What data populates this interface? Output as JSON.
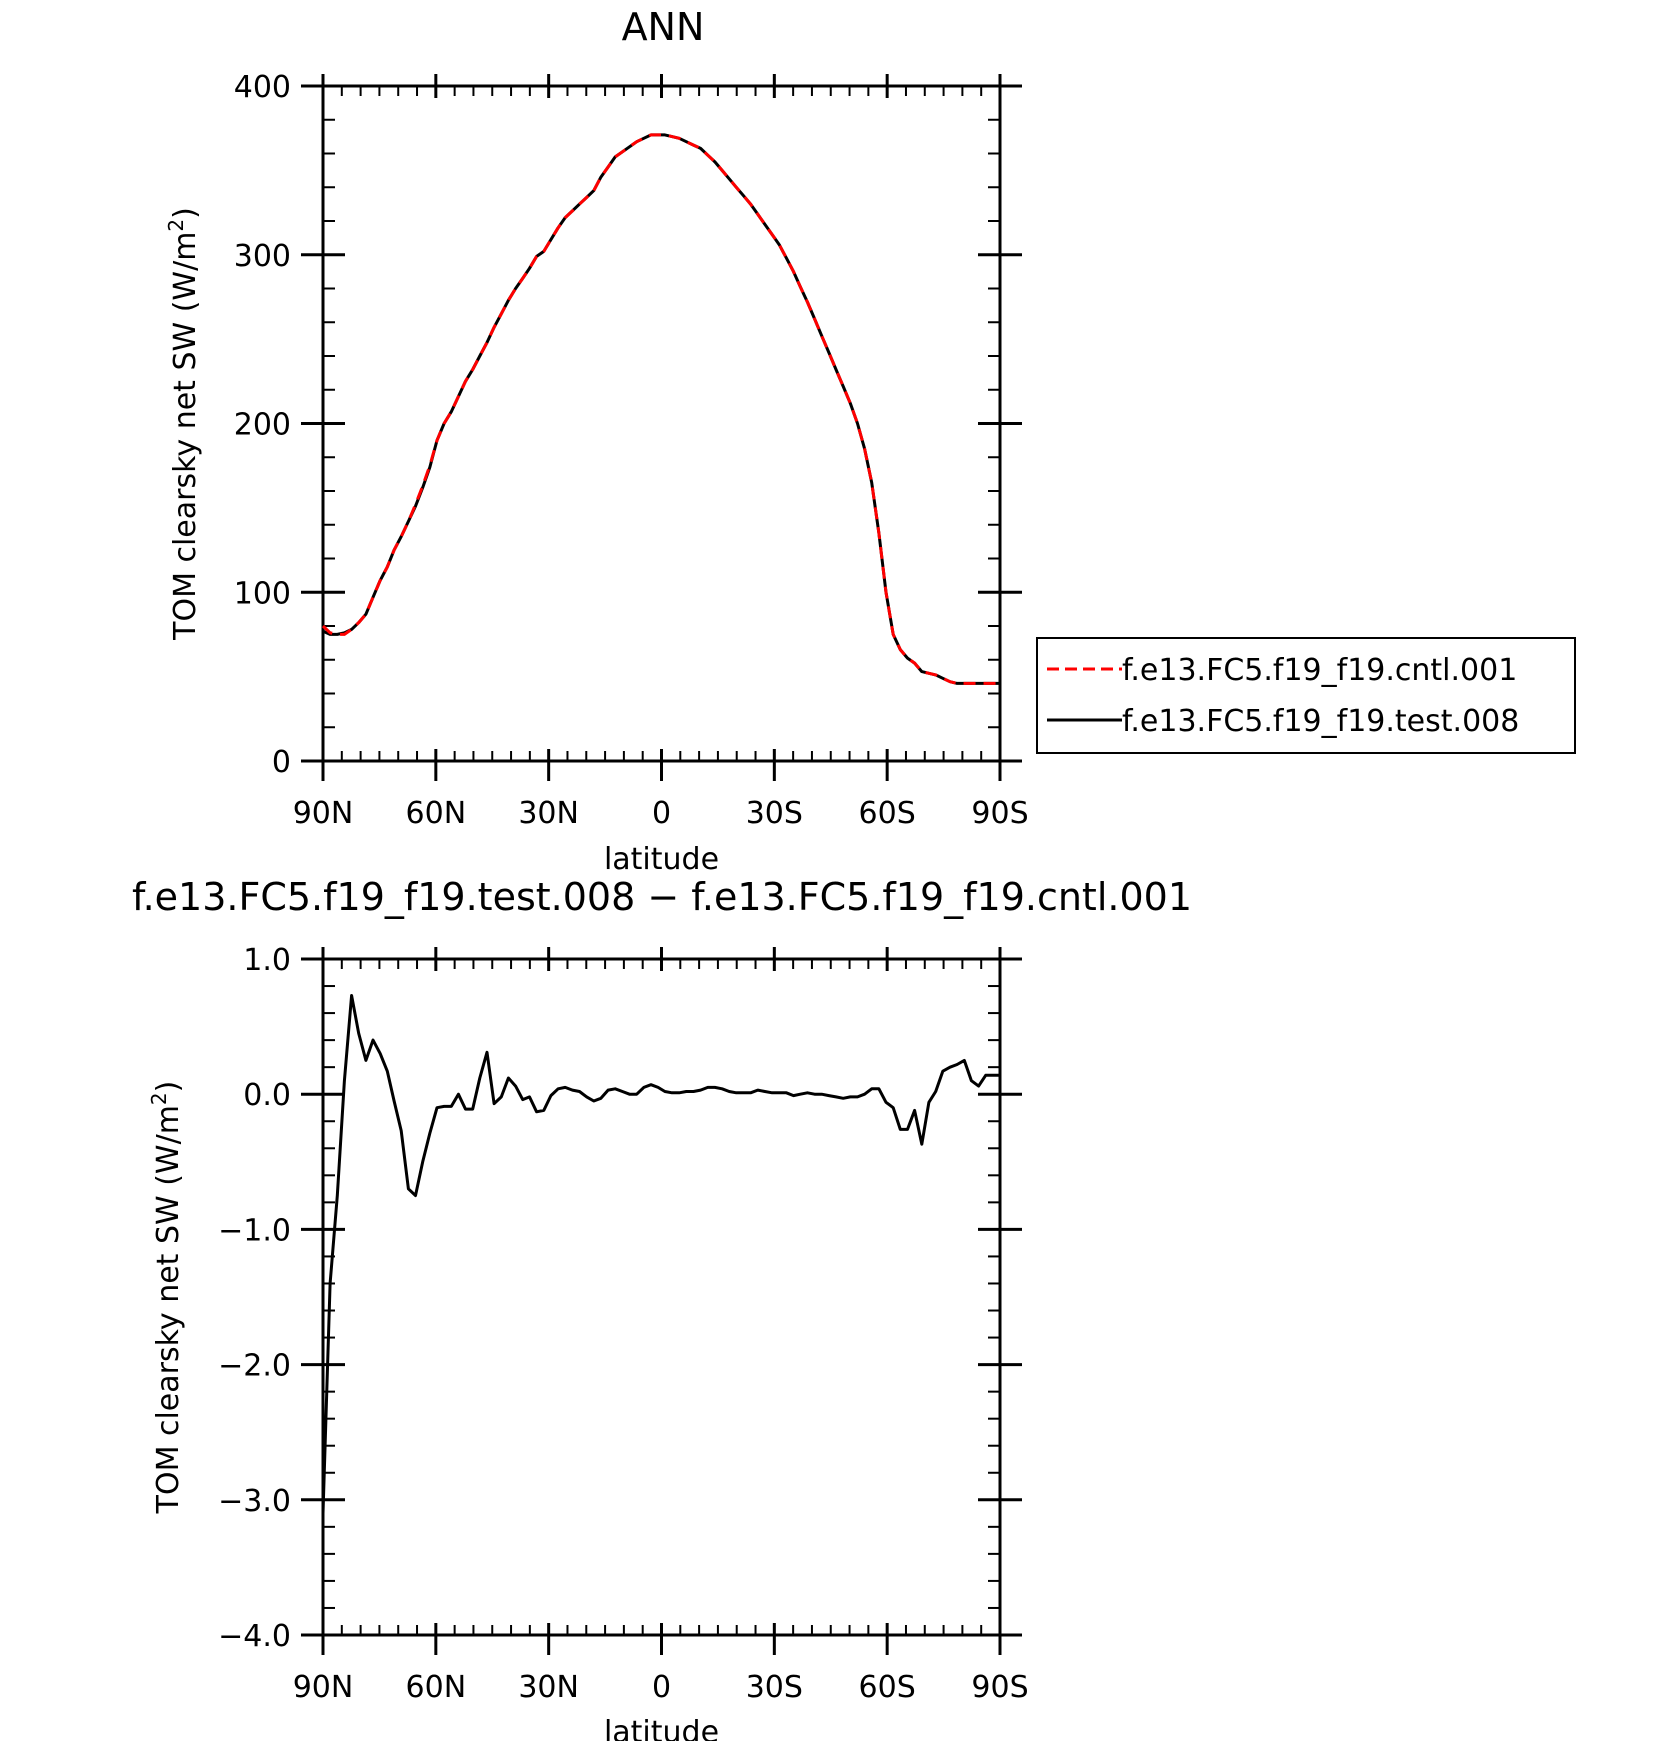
{
  "chart_data": [
    {
      "type": "line",
      "title": "ANN",
      "xlabel": "latitude",
      "ylabel_main": "TOM clearsky net SW (W/m",
      "ylabel_sup": "2",
      "ylabel_close": ")",
      "xlim": [
        90,
        -90
      ],
      "ylim": [
        0,
        400
      ],
      "xticks": [
        {
          "value": 90,
          "label": "90N"
        },
        {
          "value": 60,
          "label": "60N"
        },
        {
          "value": 30,
          "label": "30N"
        },
        {
          "value": 0,
          "label": "0"
        },
        {
          "value": -30,
          "label": "30S"
        },
        {
          "value": -60,
          "label": "60S"
        },
        {
          "value": -90,
          "label": "90S"
        }
      ],
      "yticks": [
        {
          "value": 0,
          "label": "0"
        },
        {
          "value": 100,
          "label": "100"
        },
        {
          "value": 200,
          "label": "200"
        },
        {
          "value": 300,
          "label": "300"
        },
        {
          "value": 400,
          "label": "400"
        }
      ],
      "legend": {
        "placement": "right",
        "entries": [
          "f.e13.FC5.f19_f19.cntl.001",
          "f.e13.FC5.f19_f19.test.008"
        ]
      },
      "series": [
        {
          "name": "f.e13.FC5.f19_f19.cntl.001",
          "color": "#ff0000",
          "style": "dashed",
          "x": [
            90,
            88.1,
            86.2,
            84.3,
            82.4,
            80.5,
            78.6,
            76.7,
            74.8,
            72.9,
            71.1,
            69.2,
            67.3,
            65.4,
            63.5,
            61.6,
            59.7,
            57.8,
            55.9,
            54.0,
            52.1,
            50.2,
            48.3,
            46.4,
            44.5,
            42.6,
            40.7,
            38.8,
            36.9,
            35.1,
            33.2,
            31.3,
            29.4,
            27.5,
            25.6,
            23.7,
            21.8,
            19.9,
            18.0,
            16.1,
            14.2,
            12.3,
            10.4,
            8.5,
            6.6,
            4.7,
            2.8,
            0.9,
            -0.9,
            -2.8,
            -4.7,
            -6.6,
            -8.5,
            -10.4,
            -12.3,
            -14.2,
            -16.1,
            -18.0,
            -19.9,
            -21.8,
            -23.7,
            -25.6,
            -27.5,
            -29.4,
            -31.3,
            -33.2,
            -35.1,
            -36.9,
            -38.8,
            -40.7,
            -42.6,
            -44.5,
            -46.4,
            -48.3,
            -50.2,
            -52.1,
            -54.0,
            -55.9,
            -57.8,
            -59.7,
            -61.6,
            -63.5,
            -65.4,
            -67.3,
            -69.2,
            -71.1,
            -72.9,
            -74.8,
            -76.7,
            -78.6,
            -80.5,
            -82.4,
            -84.3,
            -86.2,
            -88.1,
            -90
          ],
          "y": [
            80,
            76,
            75,
            75,
            78,
            82,
            87,
            97,
            107,
            115,
            125,
            133,
            142,
            152,
            163,
            175,
            190,
            200,
            207,
            216,
            225,
            232,
            240,
            248,
            257,
            265,
            273,
            280,
            286,
            292,
            299,
            302,
            309,
            316,
            322,
            326,
            330,
            334,
            338,
            346,
            352,
            358,
            361,
            364,
            367,
            369,
            371,
            371,
            371,
            370,
            369,
            367,
            365,
            363,
            359,
            355,
            350,
            345,
            340,
            335,
            330,
            324,
            318,
            312,
            306,
            298,
            290,
            281,
            272,
            262,
            252,
            242,
            232,
            222,
            212,
            200,
            185,
            165,
            135,
            100,
            75,
            66,
            61,
            58,
            53,
            52,
            51,
            49,
            47,
            46,
            46,
            46,
            46,
            46,
            46,
            46
          ]
        },
        {
          "name": "f.e13.FC5.f19_f19.test.008",
          "color": "#000000",
          "style": "solid",
          "x": [
            90,
            88.1,
            86.2,
            84.3,
            82.4,
            80.5,
            78.6,
            76.7,
            74.8,
            72.9,
            71.1,
            69.2,
            67.3,
            65.4,
            63.5,
            61.6,
            59.7,
            57.8,
            55.9,
            54.0,
            52.1,
            50.2,
            48.3,
            46.4,
            44.5,
            42.6,
            40.7,
            38.8,
            36.9,
            35.1,
            33.2,
            31.3,
            29.4,
            27.5,
            25.6,
            23.7,
            21.8,
            19.9,
            18.0,
            16.1,
            14.2,
            12.3,
            10.4,
            8.5,
            6.6,
            4.7,
            2.8,
            0.9,
            -0.9,
            -2.8,
            -4.7,
            -6.6,
            -8.5,
            -10.4,
            -12.3,
            -14.2,
            -16.1,
            -18.0,
            -19.9,
            -21.8,
            -23.7,
            -25.6,
            -27.5,
            -29.4,
            -31.3,
            -33.2,
            -35.1,
            -36.9,
            -38.8,
            -40.7,
            -42.6,
            -44.5,
            -46.4,
            -48.3,
            -50.2,
            -52.1,
            -54.0,
            -55.9,
            -57.8,
            -59.7,
            -61.6,
            -63.5,
            -65.4,
            -67.3,
            -69.2,
            -71.1,
            -72.9,
            -74.8,
            -76.7,
            -78.6,
            -80.5,
            -82.4,
            -84.3,
            -86.2,
            -88.1,
            -90
          ],
          "y": [
            77,
            75,
            75,
            76,
            78,
            82,
            87,
            97,
            107,
            115,
            125,
            133,
            142,
            151,
            162,
            174,
            190,
            200,
            207,
            216,
            225,
            232,
            240,
            248,
            257,
            265,
            273,
            280,
            286,
            292,
            299,
            302,
            309,
            316,
            322,
            326,
            330,
            334,
            338,
            346,
            352,
            358,
            361,
            364,
            367,
            369,
            371,
            371,
            371,
            370,
            369,
            367,
            365,
            363,
            359,
            355,
            350,
            345,
            340,
            335,
            330,
            324,
            318,
            312,
            306,
            298,
            290,
            281,
            272,
            262,
            252,
            242,
            232,
            222,
            212,
            200,
            185,
            165,
            135,
            100,
            75,
            66,
            61,
            58,
            53,
            52,
            51,
            49,
            47,
            46,
            46,
            46,
            46,
            46,
            46,
            46
          ]
        }
      ]
    },
    {
      "type": "line",
      "title": "f.e13.FC5.f19_f19.test.008 − f.e13.FC5.f19_f19.cntl.001",
      "xlabel": "latitude",
      "ylabel_main": "TOM clearsky net SW (W/m",
      "ylabel_sup": "2",
      "ylabel_close": ")",
      "xlim": [
        90,
        -90
      ],
      "ylim": [
        -4.0,
        1.0
      ],
      "xticks": [
        {
          "value": 90,
          "label": "90N"
        },
        {
          "value": 60,
          "label": "60N"
        },
        {
          "value": 30,
          "label": "30N"
        },
        {
          "value": 0,
          "label": "0"
        },
        {
          "value": -30,
          "label": "30S"
        },
        {
          "value": -60,
          "label": "60S"
        },
        {
          "value": -90,
          "label": "90S"
        }
      ],
      "yticks": [
        {
          "value": -4.0,
          "label": "−4.0"
        },
        {
          "value": -3.0,
          "label": "−3.0"
        },
        {
          "value": -2.0,
          "label": "−2.0"
        },
        {
          "value": -1.0,
          "label": "−1.0"
        },
        {
          "value": 0.0,
          "label": "0.0"
        },
        {
          "value": 1.0,
          "label": "1.0"
        }
      ],
      "series": [
        {
          "color": "#000000",
          "style": "solid",
          "x": [
            90,
            88.1,
            86.2,
            84.3,
            82.4,
            80.5,
            78.6,
            76.7,
            74.8,
            72.9,
            71.1,
            69.2,
            67.3,
            65.4,
            63.5,
            61.6,
            59.7,
            57.8,
            55.9,
            54.0,
            52.1,
            50.2,
            48.3,
            46.4,
            44.5,
            42.6,
            40.7,
            38.8,
            36.9,
            35.1,
            33.2,
            31.3,
            29.4,
            27.5,
            25.6,
            23.7,
            21.8,
            19.9,
            18.0,
            16.1,
            14.2,
            12.3,
            10.4,
            8.5,
            6.6,
            4.7,
            2.8,
            0.9,
            -0.9,
            -2.8,
            -4.7,
            -6.6,
            -8.5,
            -10.4,
            -12.3,
            -14.2,
            -16.1,
            -18.0,
            -19.9,
            -21.8,
            -23.7,
            -25.6,
            -27.5,
            -29.4,
            -31.3,
            -33.2,
            -35.1,
            -36.9,
            -38.8,
            -40.7,
            -42.6,
            -44.5,
            -46.4,
            -48.3,
            -50.2,
            -52.1,
            -54.0,
            -55.9,
            -57.8,
            -59.7,
            -61.6,
            -63.5,
            -65.4,
            -67.3,
            -69.2,
            -71.1,
            -72.9,
            -74.8,
            -76.7,
            -78.6,
            -80.5,
            -82.4,
            -84.3,
            -86.2,
            -88.1,
            -90
          ],
          "y": [
            -3.1,
            -1.4,
            -0.75,
            0.1,
            0.73,
            0.45,
            0.25,
            0.4,
            0.3,
            0.17,
            -0.05,
            -0.27,
            -0.7,
            -0.75,
            -0.5,
            -0.29,
            -0.1,
            -0.09,
            -0.09,
            0.0,
            -0.11,
            -0.11,
            0.12,
            0.31,
            -0.07,
            -0.02,
            0.12,
            0.06,
            -0.04,
            -0.02,
            -0.13,
            -0.12,
            -0.01,
            0.04,
            0.05,
            0.03,
            0.02,
            -0.02,
            -0.05,
            -0.03,
            0.03,
            0.04,
            0.02,
            0.0,
            0.0,
            0.05,
            0.07,
            0.05,
            0.02,
            0.01,
            0.01,
            0.02,
            0.02,
            0.03,
            0.05,
            0.05,
            0.04,
            0.02,
            0.01,
            0.01,
            0.01,
            0.03,
            0.02,
            0.01,
            0.01,
            0.01,
            -0.01,
            0.0,
            0.01,
            0.0,
            0.0,
            -0.01,
            -0.02,
            -0.03,
            -0.02,
            -0.02,
            0.0,
            0.04,
            0.04,
            -0.06,
            -0.1,
            -0.26,
            -0.26,
            -0.12,
            -0.37,
            -0.06,
            0.02,
            0.17,
            0.2,
            0.22,
            0.25,
            0.1,
            0.06,
            0.14,
            0.14,
            0.14
          ]
        }
      ]
    }
  ]
}
